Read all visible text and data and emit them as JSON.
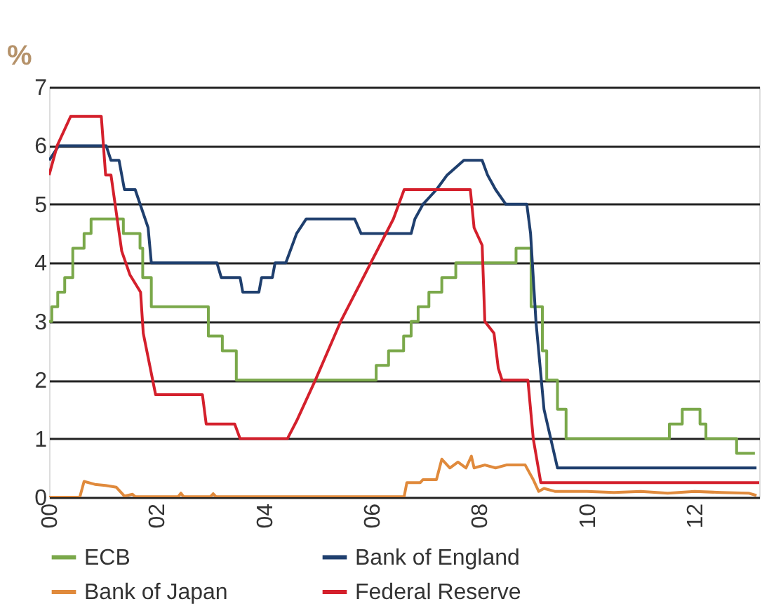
{
  "chart_data": {
    "type": "line",
    "ylabel": "%",
    "xlim": [
      2000,
      2013.2
    ],
    "xticks": [
      {
        "value": 2000,
        "label": "00"
      },
      {
        "value": 2002,
        "label": "02"
      },
      {
        "value": 2004,
        "label": "04"
      },
      {
        "value": 2006,
        "label": "06"
      },
      {
        "value": 2008,
        "label": "08"
      },
      {
        "value": 2010,
        "label": "10"
      },
      {
        "value": 2012,
        "label": "12"
      }
    ],
    "ylim": [
      0,
      7
    ],
    "yticks": [
      0,
      1,
      2,
      3,
      4,
      5,
      6,
      7
    ],
    "grid": "y",
    "legend": "bottom",
    "line_style": "solid",
    "series": [
      {
        "name": "ECB",
        "type": "step",
        "color": "#7aa84a",
        "x": [
          2000,
          2000.05,
          2000.16,
          2000.29,
          2000.44,
          2000.65,
          2000.78,
          2001.38,
          2001.69,
          2001.74,
          2001.9,
          2002.96,
          2003.22,
          2003.48,
          2006.08,
          2006.31,
          2006.59,
          2006.73,
          2006.86,
          2007.06,
          2007.3,
          2007.56,
          2008.68,
          2008.96,
          2009.17,
          2009.25,
          2009.45,
          2009.61,
          2011.53,
          2011.77,
          2012.1,
          2012.21,
          2012.78,
          2013.12
        ],
        "values": [
          3.0,
          3.25,
          3.5,
          3.75,
          4.25,
          4.5,
          4.75,
          4.5,
          4.25,
          3.75,
          3.25,
          2.75,
          2.5,
          2.0,
          2.25,
          2.5,
          2.75,
          3.0,
          3.25,
          3.5,
          3.75,
          4.0,
          4.25,
          3.25,
          2.5,
          2.0,
          1.5,
          1.0,
          1.25,
          1.5,
          1.25,
          1.0,
          0.75,
          0.75
        ]
      },
      {
        "name": "Bank of Japan",
        "type": "line",
        "color": "#e08a3c",
        "x": [
          2000,
          2000.57,
          2000.65,
          2000.85,
          2001.05,
          2001.25,
          2001.4,
          2001.55,
          2001.6,
          2002.4,
          2002.45,
          2002.5,
          2003.0,
          2003.05,
          2003.1,
          2004.0,
          2006.6,
          2006.65,
          2006.9,
          2006.95,
          2007.2,
          2007.3,
          2007.45,
          2007.6,
          2007.75,
          2007.85,
          2007.9,
          2008.1,
          2008.3,
          2008.5,
          2008.85,
          2009.0,
          2009.1,
          2009.2,
          2009.4,
          2010.0,
          2010.5,
          2011.0,
          2011.5,
          2012.0,
          2012.5,
          2013.0,
          2013.15
        ],
        "values": [
          0.0,
          0.0,
          0.27,
          0.22,
          0.2,
          0.17,
          0.02,
          0.05,
          0.01,
          0.01,
          0.07,
          0.01,
          0.01,
          0.06,
          0.01,
          0.01,
          0.01,
          0.25,
          0.25,
          0.3,
          0.3,
          0.65,
          0.5,
          0.6,
          0.5,
          0.7,
          0.5,
          0.55,
          0.5,
          0.55,
          0.55,
          0.3,
          0.1,
          0.15,
          0.1,
          0.1,
          0.08,
          0.1,
          0.07,
          0.1,
          0.08,
          0.07,
          0.03
        ]
      },
      {
        "name": "Bank of England",
        "type": "line",
        "color": "#1f3f6e",
        "x": [
          2000,
          2000.18,
          2001.06,
          2001.15,
          2001.3,
          2001.4,
          2001.6,
          2001.84,
          2001.9,
          2003.12,
          2003.2,
          2003.55,
          2003.6,
          2003.9,
          2003.95,
          2004.15,
          2004.2,
          2004.4,
          2004.6,
          2004.78,
          2005.68,
          2005.8,
          2006.73,
          2006.8,
          2006.95,
          2007.2,
          2007.4,
          2007.71,
          2008.05,
          2008.15,
          2008.3,
          2008.49,
          2008.88,
          2008.95,
          2009.05,
          2009.2,
          2009.45,
          2013.15
        ],
        "values": [
          5.75,
          6.0,
          6.0,
          5.75,
          5.75,
          5.25,
          5.25,
          4.6,
          4.0,
          4.0,
          3.75,
          3.75,
          3.5,
          3.5,
          3.75,
          3.75,
          4.0,
          4.0,
          4.5,
          4.75,
          4.75,
          4.5,
          4.5,
          4.75,
          5.0,
          5.25,
          5.5,
          5.75,
          5.75,
          5.5,
          5.25,
          5.0,
          5.0,
          4.5,
          3.0,
          1.5,
          0.5,
          0.5
        ]
      },
      {
        "name": "Federal Reserve",
        "type": "line",
        "color": "#d4202c",
        "x": [
          2000,
          2000.15,
          2000.4,
          2000.97,
          2001.05,
          2001.15,
          2001.35,
          2001.5,
          2001.7,
          2001.75,
          2001.98,
          2002.85,
          2002.92,
          2003.45,
          2003.55,
          2004.43,
          2004.6,
          2004.95,
          2005.42,
          2005.98,
          2006.4,
          2006.6,
          2007.83,
          2007.9,
          2008.05,
          2008.1,
          2008.27,
          2008.35,
          2008.42,
          2008.9,
          2009.0,
          2009.14,
          2013.2
        ],
        "values": [
          5.5,
          6.0,
          6.5,
          6.5,
          5.5,
          5.5,
          4.2,
          3.8,
          3.5,
          2.8,
          1.75,
          1.75,
          1.25,
          1.25,
          1.0,
          1.0,
          1.3,
          2.0,
          3.0,
          4.0,
          4.75,
          5.25,
          5.25,
          4.6,
          4.3,
          3.0,
          2.8,
          2.2,
          2.0,
          2.0,
          1.0,
          0.25,
          0.25
        ]
      }
    ]
  }
}
